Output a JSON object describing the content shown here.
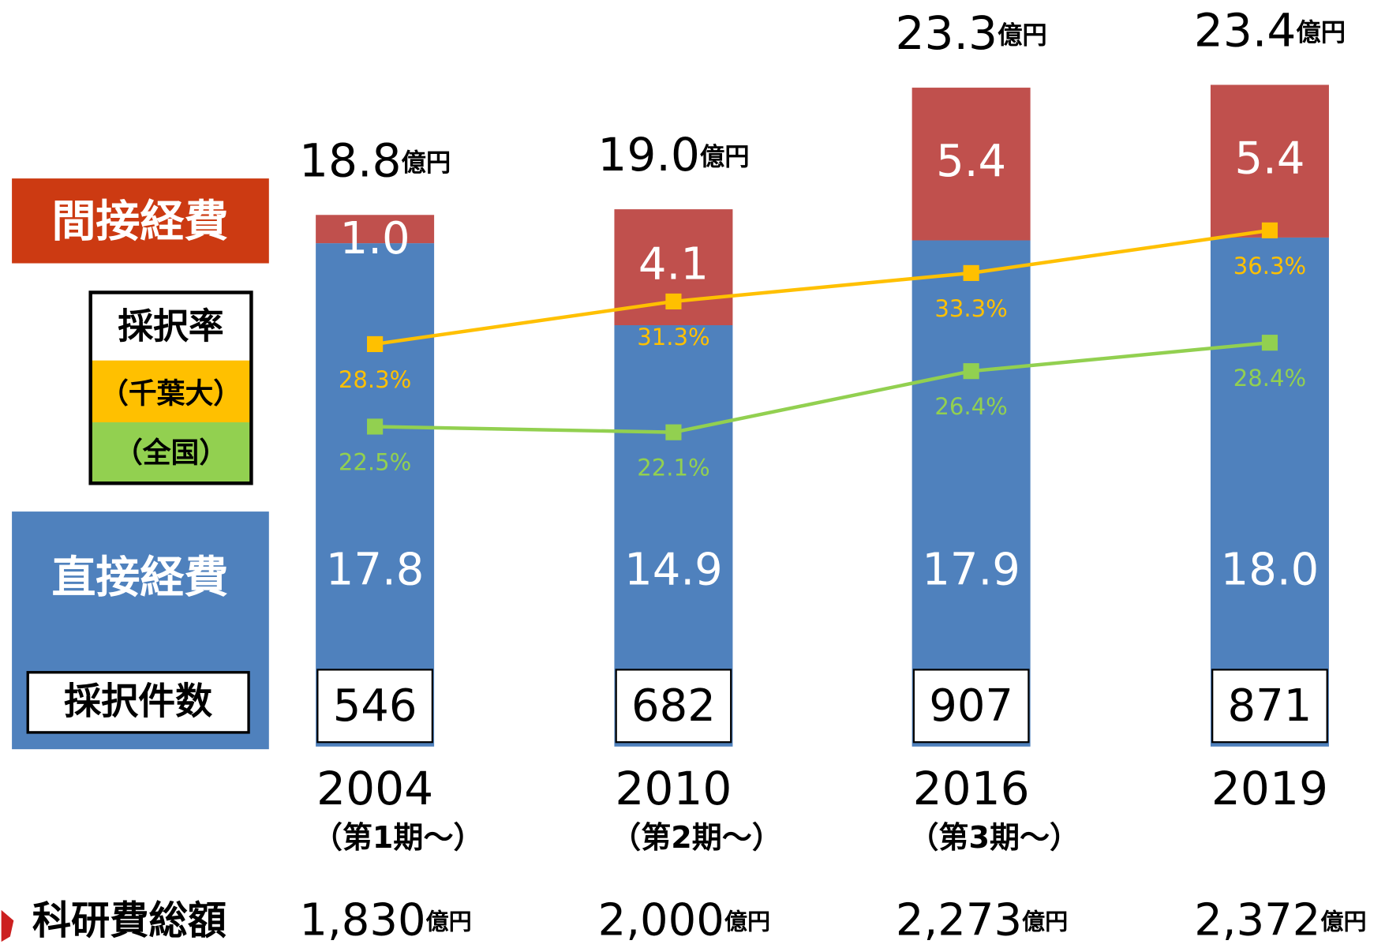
{
  "chart_data": {
    "type": "bar",
    "stacked": true,
    "categories": [
      "2004",
      "2010",
      "2016",
      "2019"
    ],
    "category_notes": [
      "（第1期～）",
      "（第2期～）",
      "（第3期～）",
      null
    ],
    "series": [
      {
        "name": "直接経費",
        "color": "#4f81bd",
        "values": [
          17.8,
          14.9,
          17.9,
          18.0
        ],
        "value_labels": [
          "17.8",
          "14.9",
          "17.9",
          "18.0"
        ]
      },
      {
        "name": "間接経費",
        "color": "#c0504d",
        "values": [
          1.0,
          4.1,
          5.4,
          5.4
        ],
        "value_labels": [
          "1.0",
          "4.1",
          "5.4",
          "5.4"
        ]
      }
    ],
    "totals": {
      "values": [
        18.8,
        19.0,
        23.3,
        23.4
      ],
      "value_labels": [
        "18.8",
        "19.0",
        "23.3",
        "23.4"
      ],
      "unit": "億円"
    },
    "ylim": [
      0,
      26.4
    ],
    "lines": {
      "title": "採択率",
      "y2lim": [
        0,
        52.5
      ],
      "series": [
        {
          "name": "（千葉大）",
          "color": "#ffc000",
          "values": [
            28.3,
            31.3,
            33.3,
            36.3
          ],
          "value_labels": [
            "28.3%",
            "31.3%",
            "33.3%",
            "36.3%"
          ]
        },
        {
          "name": "（全国）",
          "color": "#92d050",
          "values": [
            22.5,
            22.1,
            26.4,
            28.4
          ],
          "value_labels": [
            "22.5%",
            "22.1%",
            "26.4%",
            "28.4%"
          ]
        }
      ]
    },
    "counts": {
      "name": "採択件数",
      "values": [
        546,
        682,
        907,
        871
      ]
    },
    "kakenhi": {
      "name": "科研費総額",
      "values": [
        1830,
        2000,
        2273,
        2372
      ],
      "value_labels": [
        "1,830",
        "2,000",
        "2,273",
        "2,372"
      ],
      "unit": "億円"
    }
  }
}
